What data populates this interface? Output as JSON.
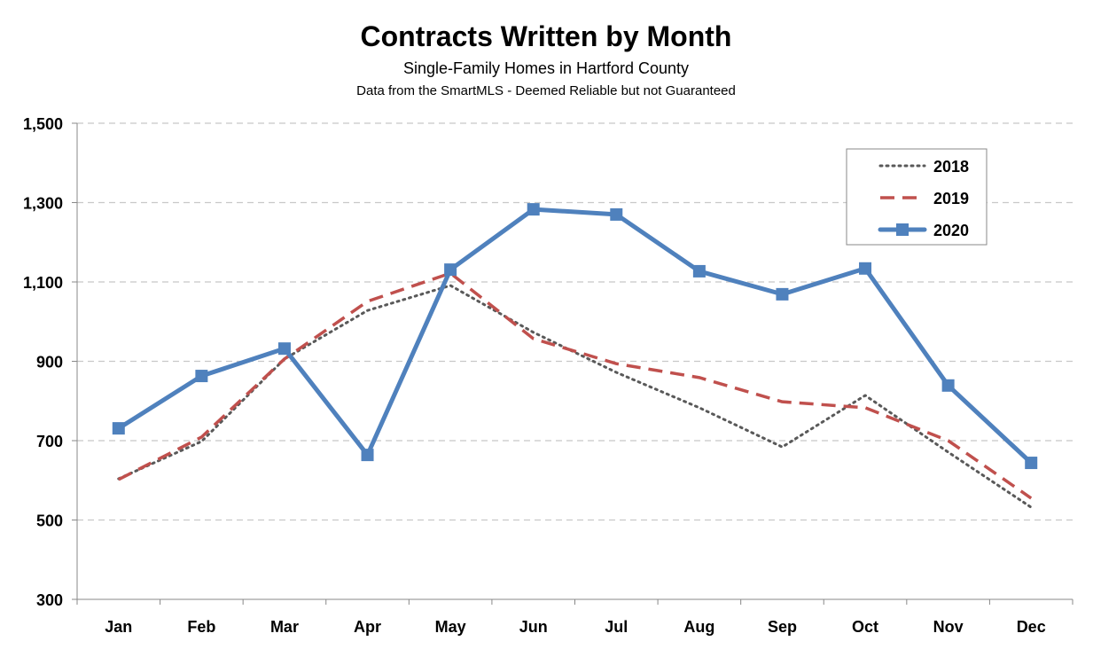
{
  "chart_data": {
    "type": "line",
    "title": "Contracts Written by Month",
    "subtitle": "Single-Family Homes in Hartford County",
    "note": "Data from the SmartMLS - Deemed Reliable but not Guaranteed",
    "xlabel": "",
    "ylabel": "",
    "ylim": [
      300,
      1500
    ],
    "yticks": [
      300,
      500,
      700,
      900,
      1100,
      1300,
      1500
    ],
    "ytick_labels": [
      "300",
      "500",
      "700",
      "900",
      "1,100",
      "1,300",
      "1,500"
    ],
    "categories": [
      "Jan",
      "Feb",
      "Mar",
      "Apr",
      "May",
      "Jun",
      "Jul",
      "Aug",
      "Sep",
      "Oct",
      "Nov",
      "Dec"
    ],
    "grid": true,
    "legend_position": "top-right",
    "series": [
      {
        "name": "2018",
        "color": "#595959",
        "style": "dotted",
        "values": [
          604,
          698,
          906,
          1028,
          1091,
          973,
          872,
          783,
          684,
          814,
          671,
          532
        ]
      },
      {
        "name": "2019",
        "color": "#C0504D",
        "style": "dashed",
        "values": [
          602,
          709,
          906,
          1051,
          1122,
          957,
          894,
          859,
          798,
          783,
          700,
          555
        ]
      },
      {
        "name": "2020",
        "color": "#4F81BD",
        "style": "solid-square-markers",
        "values": [
          731,
          863,
          932,
          664,
          1131,
          1283,
          1270,
          1127,
          1069,
          1134,
          839,
          644
        ]
      }
    ]
  }
}
